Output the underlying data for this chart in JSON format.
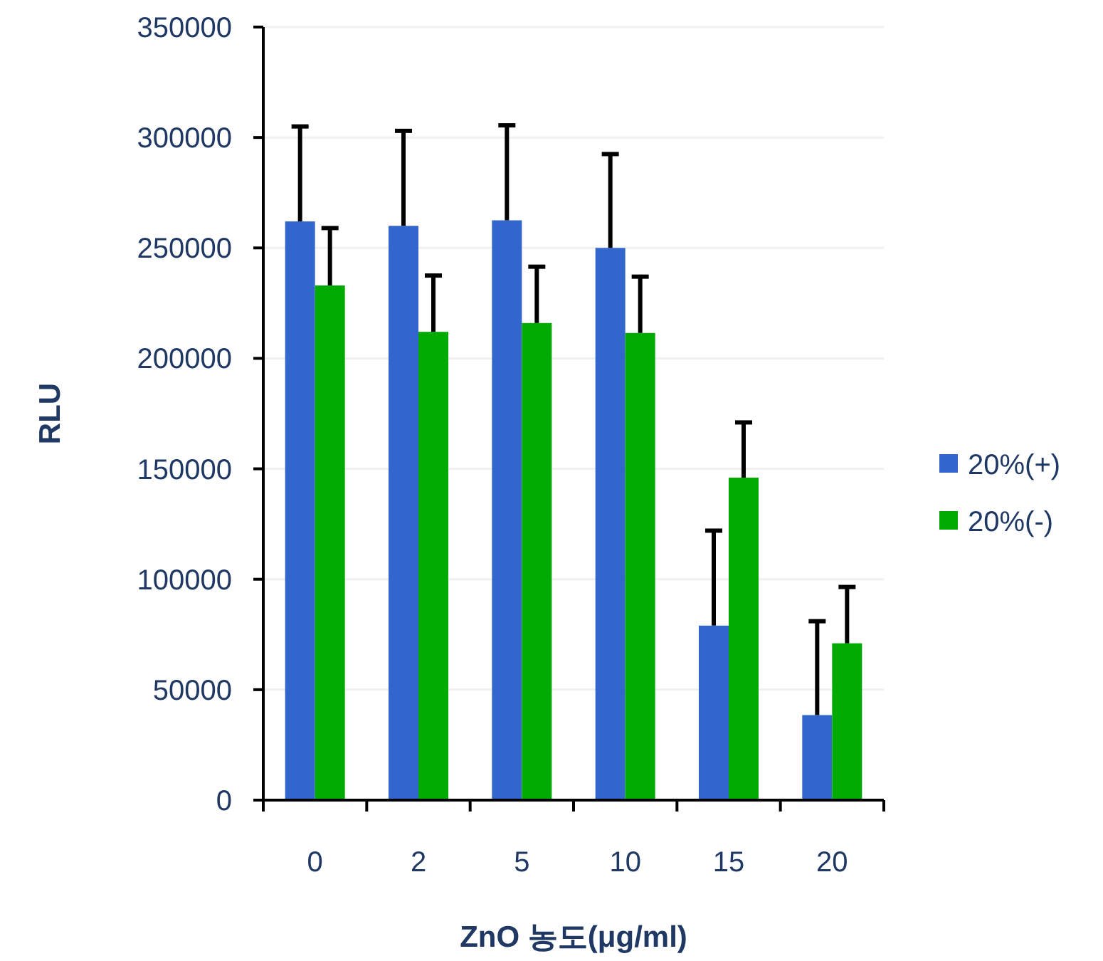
{
  "chart_data": {
    "type": "bar",
    "xlabel": "ZnO 농도(μg/ml)",
    "ylabel": "RLU",
    "categories": [
      "0",
      "2",
      "5",
      "10",
      "15",
      "20"
    ],
    "series": [
      {
        "name": "20%(+)",
        "color": "#3366cc",
        "values": [
          262000,
          260000,
          262500,
          250000,
          79000,
          38500
        ],
        "errors": [
          [
            262000,
            305000
          ],
          [
            260000,
            303000
          ],
          [
            262500,
            305500
          ],
          [
            250000,
            292500
          ],
          [
            79000,
            122000
          ],
          [
            38500,
            81000
          ]
        ]
      },
      {
        "name": "20%(-)",
        "color": "#00aa00",
        "values": [
          233000,
          212000,
          216000,
          211500,
          146000,
          71000
        ],
        "errors": [
          [
            233000,
            259000
          ],
          [
            212000,
            237500
          ],
          [
            216000,
            241500
          ],
          [
            211500,
            237000
          ],
          [
            146000,
            171000
          ],
          [
            71000,
            96500
          ]
        ]
      }
    ],
    "ylim": [
      0,
      350000
    ],
    "yticks": [
      0,
      50000,
      100000,
      150000,
      200000,
      250000,
      300000,
      350000
    ],
    "grid": "y",
    "legend": "right"
  }
}
